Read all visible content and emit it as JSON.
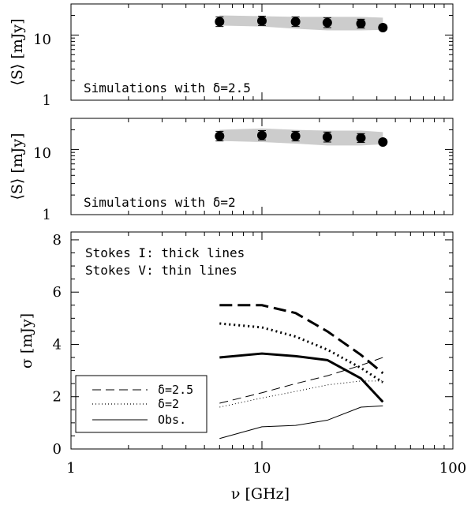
{
  "chart_data": [
    {
      "type": "scatter",
      "annotation": "Simulations with δ=2.5",
      "ylabel": "⟨S⟩ [mJy]",
      "xlabel": "",
      "xscale": "log",
      "yscale": "log",
      "xlim": [
        1,
        100
      ],
      "ylim": [
        1,
        30
      ],
      "yticklabels": [
        "1",
        "10"
      ],
      "x": [
        6,
        10,
        15,
        22,
        33,
        43
      ],
      "observed": [
        16.0,
        16.5,
        16.0,
        15.5,
        15.0,
        13.0
      ],
      "error_low": [
        13.5,
        14.0,
        13.5,
        13.0,
        12.8,
        12.0
      ],
      "error_high": [
        19.0,
        19.5,
        19.0,
        18.5,
        17.5,
        14.2
      ],
      "band_low": [
        14.0,
        13.5,
        12.5,
        11.8,
        11.8,
        12.0
      ],
      "band_high": [
        20.0,
        19.5,
        19.0,
        19.0,
        19.0,
        18.5
      ],
      "band_color": "#cccccc"
    },
    {
      "type": "scatter",
      "annotation": "Simulations with δ=2",
      "ylabel": "⟨S⟩ [mJy]",
      "xlabel": "",
      "xscale": "log",
      "yscale": "log",
      "xlim": [
        1,
        100
      ],
      "ylim": [
        1,
        30
      ],
      "yticklabels": [
        "1",
        "10"
      ],
      "x": [
        6,
        10,
        15,
        22,
        33,
        43
      ],
      "observed": [
        16.0,
        16.5,
        16.0,
        15.5,
        15.0,
        13.0
      ],
      "error_low": [
        13.5,
        14.0,
        13.5,
        13.0,
        12.8,
        12.0
      ],
      "error_high": [
        19.0,
        19.5,
        19.0,
        18.5,
        17.5,
        14.2
      ],
      "band_low": [
        13.5,
        13.0,
        12.3,
        11.5,
        11.5,
        12.0
      ],
      "band_high": [
        20.0,
        21.0,
        20.0,
        19.5,
        19.5,
        18.5
      ],
      "band_color": "#cccccc"
    },
    {
      "type": "line",
      "xlabel": "ν [GHz]",
      "ylabel": "σ [mJy]",
      "xscale": "log",
      "xlim": [
        1,
        100
      ],
      "ylim": [
        0,
        8.3
      ],
      "yticks": [
        0,
        2,
        4,
        6,
        8
      ],
      "yticklabels": [
        "0",
        "2",
        "4",
        "6",
        "8"
      ],
      "xticks": [
        1,
        10,
        100
      ],
      "xticklabels": [
        "1",
        "10",
        "100"
      ],
      "notes": [
        "Stokes I: thick lines",
        "Stokes V: thin lines"
      ],
      "legend_position": "lower-left",
      "x": [
        6,
        10,
        15,
        22,
        33,
        43
      ],
      "series": [
        {
          "name": "δ=2.5",
          "stokes": "I",
          "style": "dashed",
          "values": [
            5.5,
            5.5,
            5.2,
            4.5,
            3.6,
            2.9
          ]
        },
        {
          "name": "δ=2",
          "stokes": "I",
          "style": "dotted",
          "values": [
            4.8,
            4.65,
            4.3,
            3.8,
            3.1,
            2.55
          ]
        },
        {
          "name": "Obs.",
          "stokes": "I",
          "style": "solid",
          "values": [
            3.5,
            3.65,
            3.55,
            3.4,
            2.7,
            1.8
          ]
        },
        {
          "name": "δ=2.5",
          "stokes": "V",
          "style": "dashed",
          "values": [
            1.75,
            2.15,
            2.5,
            2.8,
            3.2,
            3.5
          ]
        },
        {
          "name": "δ=2",
          "stokes": "V",
          "style": "dotted",
          "values": [
            1.6,
            1.95,
            2.2,
            2.45,
            2.6,
            2.6
          ]
        },
        {
          "name": "Obs.",
          "stokes": "V",
          "style": "solid",
          "values": [
            0.4,
            0.85,
            0.9,
            1.1,
            1.6,
            1.65
          ]
        }
      ]
    }
  ]
}
